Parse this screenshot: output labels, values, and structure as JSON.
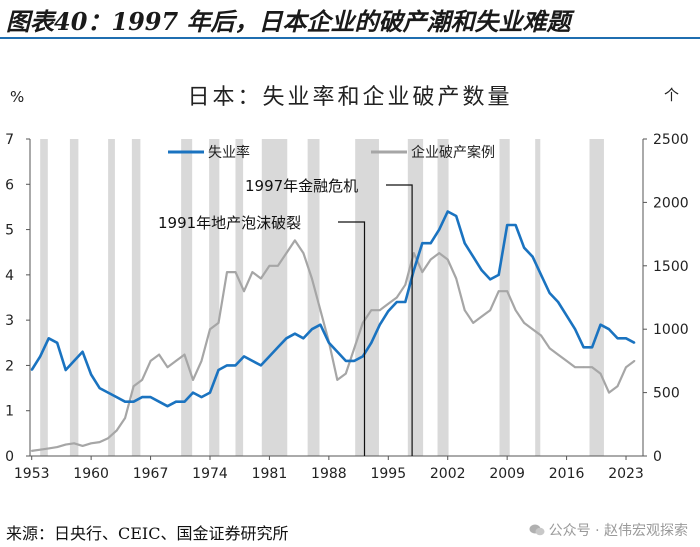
{
  "header": {
    "title": "图表40：1997 年后，日本企业的破产潮和失业难题"
  },
  "footer": {
    "source": "来源：日央行、CEIC、国金证券研究所",
    "watermark": "公众号 · 赵伟宏观探索",
    "watermark_icon": "wechat-icon"
  },
  "colors": {
    "unemployment": "#1a73c0",
    "bankruptcy": "#a6a6a6",
    "recession": "#d9d9d9",
    "header_rule": "#1f6eb0"
  },
  "chart_data": {
    "type": "line",
    "title": "日本：失业率和企业破产数量",
    "y_left_unit": "%",
    "y_right_unit": "个",
    "ylim_left": [
      0,
      7
    ],
    "ylim_right": [
      0,
      2500
    ],
    "xlim": [
      1952.8,
      2025.0
    ],
    "y_left_ticks": [
      "0",
      "1",
      "2",
      "3",
      "4",
      "5",
      "6",
      "7"
    ],
    "y_right_ticks": [
      "0",
      "500",
      "1000",
      "1500",
      "2000",
      "2500"
    ],
    "x_ticks": [
      "1953",
      "1960",
      "1967",
      "1974",
      "1981",
      "1988",
      "1995",
      "2002",
      "2009",
      "2016",
      "2023"
    ],
    "legend": {
      "position": "top",
      "entries": [
        "失业率",
        "企业破产案例"
      ]
    },
    "recessions": [
      [
        1954.0,
        1954.9
      ],
      [
        1957.5,
        1958.5
      ],
      [
        1962.0,
        1962.8
      ],
      [
        1964.8,
        1965.8
      ],
      [
        1970.6,
        1971.9
      ],
      [
        1973.9,
        1975.1
      ],
      [
        1977.0,
        1977.9
      ],
      [
        1980.1,
        1983.1
      ],
      [
        1985.5,
        1986.9
      ],
      [
        1991.1,
        1993.9
      ],
      [
        1997.3,
        1999.1
      ],
      [
        2000.8,
        2002.1
      ],
      [
        2008.1,
        2009.3
      ],
      [
        2012.3,
        2012.9
      ],
      [
        2018.7,
        2020.4
      ]
    ],
    "annotations": [
      {
        "text": "1997年金融危机",
        "x": 1997.8
      },
      {
        "text": "1991年地产泡沫破裂",
        "x": 1992.2
      }
    ],
    "series": [
      {
        "name": "失业率",
        "axis": "left",
        "x": [
          1953,
          1954,
          1955,
          1956,
          1957,
          1958,
          1959,
          1960,
          1961,
          1962,
          1963,
          1964,
          1965,
          1966,
          1967,
          1968,
          1969,
          1970,
          1971,
          1972,
          1973,
          1974,
          1975,
          1976,
          1977,
          1978,
          1979,
          1980,
          1981,
          1982,
          1983,
          1984,
          1985,
          1986,
          1987,
          1988,
          1989,
          1990,
          1991,
          1992,
          1993,
          1994,
          1995,
          1996,
          1997,
          1998,
          1999,
          2000,
          2001,
          2002,
          2003,
          2004,
          2005,
          2006,
          2007,
          2008,
          2009,
          2010,
          2011,
          2012,
          2013,
          2014,
          2015,
          2016,
          2017,
          2018,
          2019,
          2020,
          2021,
          2022,
          2023,
          2024
        ],
        "values": [
          1.9,
          2.2,
          2.6,
          2.5,
          1.9,
          2.1,
          2.3,
          1.8,
          1.5,
          1.4,
          1.3,
          1.2,
          1.2,
          1.3,
          1.3,
          1.2,
          1.1,
          1.2,
          1.2,
          1.4,
          1.3,
          1.4,
          1.9,
          2.0,
          2.0,
          2.2,
          2.1,
          2.0,
          2.2,
          2.4,
          2.6,
          2.7,
          2.6,
          2.8,
          2.9,
          2.5,
          2.3,
          2.1,
          2.1,
          2.2,
          2.5,
          2.9,
          3.2,
          3.4,
          3.4,
          4.1,
          4.7,
          4.7,
          5.0,
          5.4,
          5.3,
          4.7,
          4.4,
          4.1,
          3.9,
          4.0,
          5.1,
          5.1,
          4.6,
          4.4,
          4.0,
          3.6,
          3.4,
          3.1,
          2.8,
          2.4,
          2.4,
          2.9,
          2.8,
          2.6,
          2.6,
          2.5
        ]
      },
      {
        "name": "企业破产案例",
        "axis": "right",
        "x": [
          1953,
          1954,
          1955,
          1956,
          1957,
          1958,
          1959,
          1960,
          1961,
          1962,
          1963,
          1964,
          1965,
          1966,
          1967,
          1968,
          1969,
          1970,
          1971,
          1972,
          1973,
          1974,
          1975,
          1976,
          1977,
          1978,
          1979,
          1980,
          1981,
          1982,
          1983,
          1984,
          1985,
          1986,
          1987,
          1988,
          1989,
          1990,
          1991,
          1992,
          1993,
          1994,
          1995,
          1996,
          1997,
          1998,
          1999,
          2000,
          2001,
          2002,
          2003,
          2004,
          2005,
          2006,
          2007,
          2008,
          2009,
          2010,
          2011,
          2012,
          2013,
          2014,
          2015,
          2016,
          2017,
          2018,
          2019,
          2020,
          2021,
          2022,
          2023,
          2024
        ],
        "values": [
          40,
          50,
          60,
          70,
          90,
          100,
          80,
          100,
          110,
          140,
          200,
          300,
          550,
          600,
          750,
          800,
          700,
          750,
          800,
          600,
          750,
          1000,
          1050,
          1450,
          1450,
          1300,
          1450,
          1400,
          1500,
          1500,
          1600,
          1700,
          1600,
          1400,
          1150,
          900,
          600,
          650,
          850,
          1050,
          1150,
          1150,
          1200,
          1250,
          1350,
          1600,
          1450,
          1550,
          1600,
          1550,
          1400,
          1150,
          1050,
          1100,
          1150,
          1300,
          1300,
          1150,
          1050,
          1000,
          950,
          850,
          800,
          750,
          700,
          700,
          700,
          650,
          500,
          550,
          700,
          750
        ]
      }
    ]
  }
}
